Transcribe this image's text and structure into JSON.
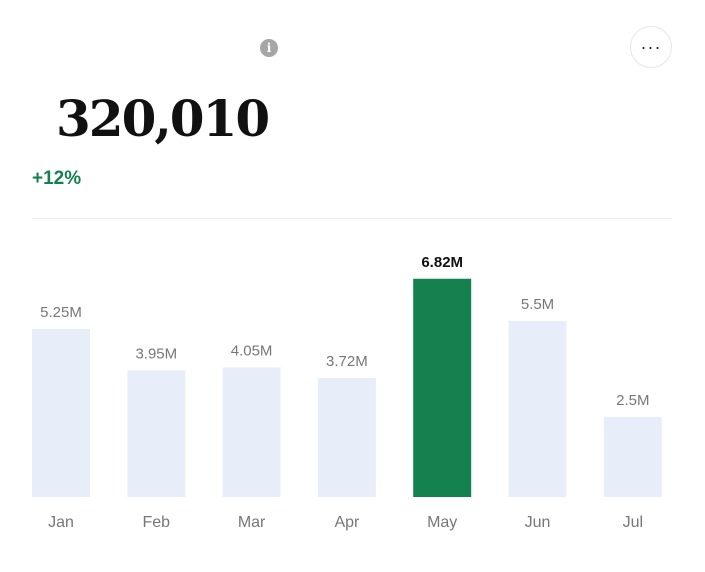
{
  "header": {
    "info_icon": "i",
    "more_label": "···"
  },
  "summary": {
    "value": "320,010",
    "change": "+12%"
  },
  "colors": {
    "bar_default": "#e8eef9",
    "bar_highlight": "#14814f",
    "label_default": "#777777",
    "label_highlight": "#111111",
    "change_positive": "#15804f"
  },
  "chart_data": {
    "type": "bar",
    "categories": [
      "Jan",
      "Feb",
      "Mar",
      "Apr",
      "May",
      "Jun",
      "Jul"
    ],
    "values": [
      5.25,
      3.95,
      4.05,
      3.72,
      6.82,
      5.5,
      2.5
    ],
    "data_labels": [
      "5.25M",
      "3.95M",
      "4.05M",
      "3.72M",
      "6.82M",
      "5.5M",
      "2.5M"
    ],
    "highlight_index": 4,
    "unit": "M",
    "ylim": [
      0,
      9
    ],
    "grid": false
  }
}
